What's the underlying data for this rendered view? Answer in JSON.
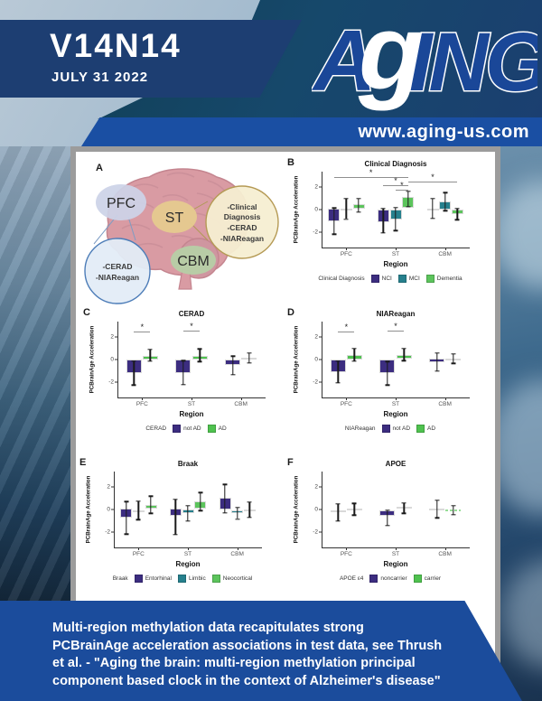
{
  "header": {
    "volume": "V14N14",
    "date": "JULY 31 2022",
    "website": "www.aging-us.com",
    "logo": {
      "a": "A",
      "g": "g",
      "ing": "ING"
    },
    "colors": {
      "banner_navy": "#1d3e72",
      "band_blue": "#1a4fa3",
      "logo_blue": "#1a4798"
    }
  },
  "footer": {
    "lines": [
      "Multi-region methylation data recapitulates strong",
      "PCBrainAge acceleration associations in test data, see Thrush",
      "et al. - \"Aging the brain: multi-region methylation principal",
      "component based clock in the context of Alzheimer's disease\""
    ],
    "color": "#1b4c9c"
  },
  "figure": {
    "panel_a": {
      "label": "A",
      "regions": [
        {
          "name": "PFC"
        },
        {
          "name": "ST"
        },
        {
          "name": "CBM"
        }
      ],
      "callout_right": {
        "lines": [
          "-Clinical",
          "Diagnosis",
          "-CERAD",
          "-NIAReagan"
        ]
      },
      "callout_left": {
        "lines": [
          "-CERAD",
          "-NIAReagan"
        ]
      }
    },
    "palette": {
      "purple": "#3c2d80",
      "teal": "#26808d",
      "green": "#55c155",
      "light_purple": "#8f8ac4",
      "light_green": "#97dd97"
    }
  },
  "chart_data": [
    {
      "type": "bar",
      "panel_label": "B",
      "title": "Clinical Diagnosis",
      "ylabel": "PCBrainAge Acceleration",
      "xlabel": "Region",
      "categories": [
        "PFC",
        "ST",
        "CBM"
      ],
      "ylim": [
        -3.4,
        3.4
      ],
      "yticks": [
        -2,
        0,
        2
      ],
      "legend_label": "Clinical Diagnosis",
      "series": [
        {
          "name": "NCI",
          "color": "#3c2d80"
        },
        {
          "name": "MCI",
          "color": "#26808d"
        },
        {
          "name": "Dementia",
          "color": "#5cc45c"
        }
      ],
      "bars": [
        [
          {
            "box": [
              -1.05,
              0.05
            ],
            "err": [
              -2.2,
              0.15
            ]
          },
          {
            "box": [
              0.0,
              0.12
            ],
            "err": [
              -0.85,
              1.0
            ]
          },
          {
            "box": [
              0.05,
              0.5
            ],
            "err": [
              -0.25,
              1.0
            ]
          }
        ],
        [
          {
            "box": [
              -1.1,
              0.0
            ],
            "err": [
              -2.1,
              0.1
            ]
          },
          {
            "box": [
              -0.85,
              0.0
            ],
            "err": [
              -1.9,
              0.2
            ]
          },
          {
            "box": [
              0.2,
              1.1
            ],
            "err": [
              0.25,
              1.65
            ]
          }
        ],
        [
          {
            "box": [
              0.0,
              0.12
            ],
            "err": [
              -0.8,
              1.0
            ]
          },
          {
            "box": [
              0.0,
              0.7
            ],
            "err": [
              -0.1,
              1.5
            ]
          },
          {
            "box": [
              -0.4,
              0.0
            ],
            "err": [
              -0.9,
              0.1
            ]
          }
        ]
      ],
      "brackets": [
        {
          "from": 0,
          "to": 5,
          "y": 2.9,
          "label": "*"
        },
        {
          "from": 5,
          "to": 8,
          "y": 2.55,
          "label": "*"
        },
        {
          "from": 3,
          "to": 5,
          "y": 2.2,
          "label": "*"
        },
        {
          "from": 4,
          "to": 5,
          "y": 1.8,
          "label": "*"
        }
      ]
    },
    {
      "type": "bar",
      "panel_label": "C",
      "title": "CERAD",
      "ylabel": "PCBrainAge Acceleration",
      "xlabel": "Region",
      "categories": [
        "PFC",
        "ST",
        "CBM"
      ],
      "ylim": [
        -3.4,
        3.4
      ],
      "yticks": [
        -2,
        0,
        2
      ],
      "legend_label": "CERAD",
      "series": [
        {
          "name": "not AD",
          "color": "#3c2d80"
        },
        {
          "name": "AD",
          "color": "#4fc24f"
        }
      ],
      "bars": [
        [
          {
            "box": [
              -1.2,
              0.0
            ],
            "err": [
              -2.3,
              -0.15
            ]
          },
          {
            "box": [
              0.0,
              0.35
            ],
            "err": [
              -0.15,
              0.9
            ]
          }
        ],
        [
          {
            "box": [
              -1.25,
              0.0
            ],
            "err": [
              -2.25,
              -0.1
            ]
          },
          {
            "box": [
              0.0,
              0.3
            ],
            "err": [
              -0.2,
              0.95
            ]
          }
        ],
        [
          {
            "box": [
              -0.5,
              0.0
            ],
            "err": [
              -1.35,
              0.3
            ]
          },
          {
            "box": [
              0.05,
              0.18
            ],
            "err": [
              -0.3,
              0.6
            ]
          }
        ]
      ],
      "brackets": [
        {
          "from": 0,
          "to": 1,
          "y": 2.5,
          "label": "*"
        },
        {
          "from": 2,
          "to": 3,
          "y": 2.6,
          "label": "*"
        }
      ]
    },
    {
      "type": "bar",
      "panel_label": "D",
      "title": "NIAReagan",
      "ylabel": "PCBrainAge Acceleration",
      "xlabel": "Region",
      "categories": [
        "PFC",
        "ST",
        "CBM"
      ],
      "ylim": [
        -3.4,
        3.4
      ],
      "yticks": [
        -2,
        0,
        2
      ],
      "legend_label": "NIAReagan",
      "series": [
        {
          "name": "not AD",
          "color": "#3c2d80"
        },
        {
          "name": "AD",
          "color": "#4fc24f"
        }
      ],
      "bars": [
        [
          {
            "box": [
              -1.1,
              0.0
            ],
            "err": [
              -2.1,
              -0.15
            ]
          },
          {
            "box": [
              0.0,
              0.4
            ],
            "err": [
              -0.15,
              1.0
            ]
          }
        ],
        [
          {
            "box": [
              -1.2,
              0.0
            ],
            "err": [
              -2.3,
              -0.2
            ]
          },
          {
            "box": [
              0.05,
              0.4
            ],
            "err": [
              -0.1,
              1.0
            ]
          }
        ],
        [
          {
            "box": [
              -0.25,
              0.05
            ],
            "err": [
              -1.05,
              0.6
            ]
          },
          {
            "box": [
              0.0,
              0.1
            ],
            "err": [
              -0.35,
              0.5
            ]
          }
        ]
      ],
      "brackets": [
        {
          "from": 0,
          "to": 1,
          "y": 2.5,
          "label": "*"
        },
        {
          "from": 2,
          "to": 3,
          "y": 2.6,
          "label": "*"
        }
      ]
    },
    {
      "type": "bar",
      "panel_label": "E",
      "title": "Braak",
      "ylabel": "PCBrainAge Acceleration",
      "xlabel": "Region",
      "categories": [
        "PFC",
        "ST",
        "CBM"
      ],
      "ylim": [
        -3.4,
        3.4
      ],
      "yticks": [
        -2,
        0,
        2
      ],
      "legend_label": "Braak",
      "series": [
        {
          "name": "Entorhinal",
          "color": "#3c2d80"
        },
        {
          "name": "Limbic",
          "color": "#26808d"
        },
        {
          "name": "Neocortical",
          "color": "#5cc45c"
        }
      ],
      "bars": [
        [
          {
            "box": [
              -0.7,
              0.05
            ],
            "err": [
              -2.2,
              0.7
            ]
          },
          {
            "box": [
              -0.18,
              -0.05
            ],
            "err": [
              -0.9,
              0.75
            ]
          },
          {
            "box": [
              0.05,
              0.4
            ],
            "err": [
              -0.35,
              1.2
            ]
          }
        ],
        [
          {
            "box": [
              -0.6,
              0.05
            ],
            "err": [
              -2.25,
              0.9
            ]
          },
          {
            "box": [
              -0.35,
              0.0
            ],
            "err": [
              -1.05,
              0.35
            ]
          },
          {
            "box": [
              0.1,
              0.7
            ],
            "err": [
              -0.1,
              1.5
            ]
          }
        ],
        [
          {
            "box": [
              0.0,
              1.05
            ],
            "err": [
              -0.3,
              2.25
            ]
          },
          {
            "box": [
              -0.35,
              -0.05
            ],
            "err": [
              -0.85,
              0.2
            ]
          },
          {
            "box": [
              -0.1,
              0.0
            ],
            "err": [
              -0.7,
              0.65
            ]
          }
        ]
      ],
      "brackets": []
    },
    {
      "type": "bar",
      "panel_label": "F",
      "title": "APOE",
      "ylabel": "PCBrainAge Acceleration",
      "xlabel": "Region",
      "categories": [
        "PFC",
        "ST",
        "CBM"
      ],
      "ylim": [
        -3.4,
        3.4
      ],
      "yticks": [
        -2,
        0,
        2
      ],
      "legend_label": "APOE ε4",
      "series": [
        {
          "name": "noncarrier",
          "color": "#3c2d80"
        },
        {
          "name": "carrier",
          "color": "#4fc24f"
        }
      ],
      "bars": [
        [
          {
            "box": [
              -0.28,
              -0.05
            ],
            "err": [
              -1.05,
              0.5
            ]
          },
          {
            "box": [
              0.0,
              0.1
            ],
            "err": [
              -0.5,
              0.55
            ]
          }
        ],
        [
          {
            "box": [
              -0.6,
              -0.05
            ],
            "err": [
              -1.45,
              -0.05
            ]
          },
          {
            "box": [
              0.05,
              0.25
            ],
            "err": [
              -0.35,
              0.6
            ]
          }
        ],
        [
          {
            "box": [
              -0.05,
              0.05
            ],
            "err": [
              -0.75,
              0.85
            ],
            "color": "#8f8ac4"
          },
          {
            "box": [
              -0.02,
              0.02
            ],
            "err": [
              -0.45,
              0.35
            ],
            "color": "#97dd97",
            "dashed": true
          }
        ]
      ],
      "brackets": []
    }
  ]
}
